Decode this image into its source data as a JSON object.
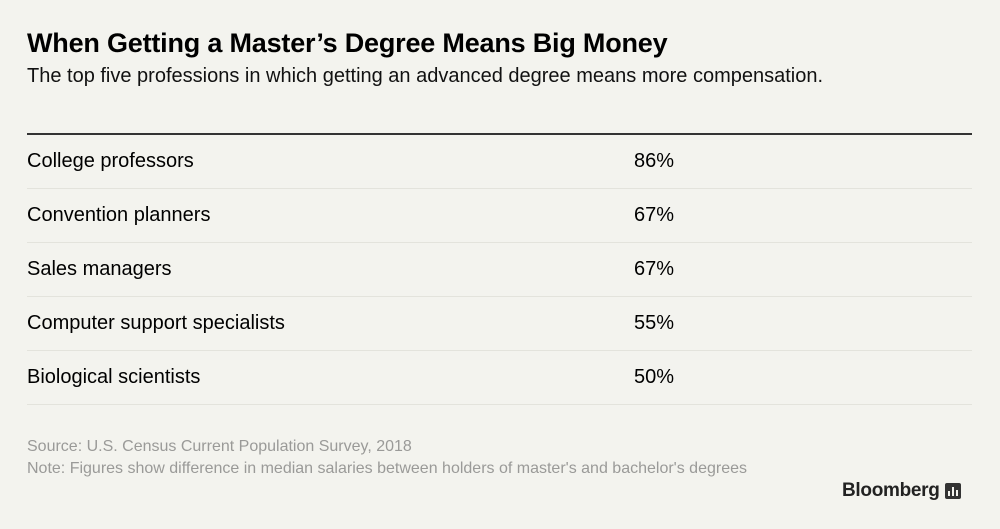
{
  "chart_data": {
    "type": "table",
    "title": "When Getting a Master’s Degree Means Big Money",
    "subtitle": "The top five professions in which getting an advanced degree means more compensation.",
    "rows": [
      {
        "label": "College professors",
        "value": "86%"
      },
      {
        "label": "Convention planners",
        "value": "67%"
      },
      {
        "label": "Sales managers",
        "value": "67%"
      },
      {
        "label": "Computer support specialists",
        "value": "55%"
      },
      {
        "label": "Biological scientists",
        "value": "50%"
      }
    ],
    "values": [
      86,
      67,
      67,
      55,
      50
    ],
    "unit": "%"
  },
  "footer": {
    "source": "Source: U.S. Census Current Population Survey, 2018",
    "note": "Note: Figures show difference in median salaries between holders of master's and bachelor's degrees"
  },
  "brand": {
    "name": "Bloomberg",
    "icon": "bloomberg-chart-icon"
  }
}
